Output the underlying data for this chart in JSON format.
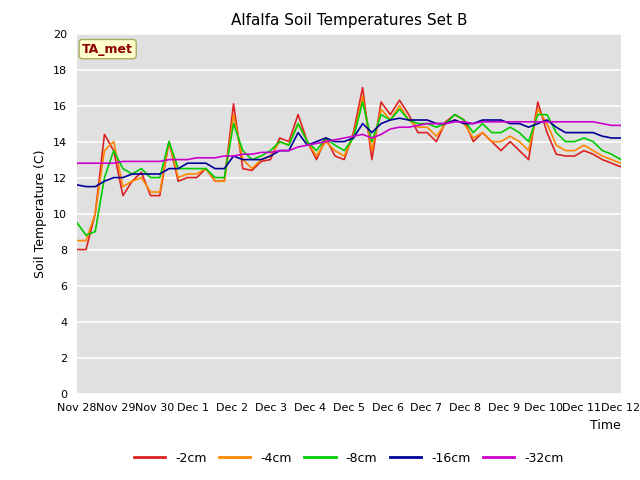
{
  "title": "Alfalfa Soil Temperatures Set B",
  "xlabel": "Time",
  "ylabel": "Soil Temperature (C)",
  "ylim": [
    0,
    20
  ],
  "yticks": [
    0,
    2,
    4,
    6,
    8,
    10,
    12,
    14,
    16,
    18,
    20
  ],
  "bg_color": "#e0e0e0",
  "fig_color": "#ffffff",
  "annotation_text": "TA_met",
  "annotation_color": "#8b0000",
  "annotation_bg": "#ffffcc",
  "series": {
    "-2cm": {
      "color": "#dd2222",
      "lw": 1.2
    },
    "-4cm": {
      "color": "#ff8800",
      "lw": 1.2
    },
    "-8cm": {
      "color": "#00cc00",
      "lw": 1.2
    },
    "-16cm": {
      "color": "#000099",
      "lw": 1.2
    },
    "-32cm": {
      "color": "#cc00cc",
      "lw": 1.2
    }
  },
  "x_tick_labels": [
    "Nov 28",
    "Nov 29",
    "Nov 30",
    "Dec 1",
    "Dec 2",
    "Dec 3",
    "Dec 4",
    "Dec 5",
    "Dec 6",
    "Dec 7",
    "Dec 8",
    "Dec 9",
    "Dec 10",
    "Dec 11",
    "Dec 12"
  ],
  "data_2cm": [
    8.0,
    8.0,
    10.0,
    14.4,
    13.5,
    11.0,
    11.8,
    12.3,
    11.0,
    11.0,
    14.0,
    11.8,
    12.0,
    12.0,
    12.5,
    11.8,
    11.8,
    16.1,
    12.5,
    12.4,
    12.9,
    13.0,
    14.2,
    14.0,
    15.5,
    14.0,
    13.0,
    14.2,
    13.2,
    13.0,
    14.5,
    17.0,
    13.0,
    16.2,
    15.5,
    16.3,
    15.5,
    14.5,
    14.5,
    14.0,
    15.1,
    15.5,
    15.2,
    14.0,
    14.5,
    14.0,
    13.5,
    14.0,
    13.5,
    13.0,
    16.2,
    14.5,
    13.3,
    13.2,
    13.2,
    13.5,
    13.3,
    13.0,
    12.8,
    12.6
  ],
  "data_4cm": [
    8.5,
    8.5,
    10.0,
    13.5,
    14.0,
    11.5,
    11.8,
    12.0,
    11.2,
    11.2,
    14.0,
    12.0,
    12.2,
    12.2,
    12.5,
    11.8,
    11.8,
    15.5,
    13.0,
    12.5,
    13.0,
    13.2,
    14.0,
    13.8,
    15.0,
    14.0,
    13.2,
    14.0,
    13.5,
    13.2,
    14.3,
    16.5,
    13.5,
    15.8,
    15.2,
    16.0,
    15.2,
    14.8,
    14.8,
    14.3,
    15.0,
    15.2,
    15.0,
    14.2,
    14.5,
    14.0,
    14.0,
    14.3,
    14.0,
    13.5,
    15.8,
    15.0,
    13.8,
    13.5,
    13.5,
    13.8,
    13.5,
    13.2,
    13.0,
    12.8
  ],
  "data_8cm": [
    9.5,
    8.8,
    9.0,
    12.0,
    13.5,
    12.5,
    12.2,
    12.5,
    12.0,
    12.0,
    14.0,
    12.5,
    12.5,
    12.5,
    12.5,
    12.0,
    12.0,
    15.0,
    13.5,
    13.0,
    13.2,
    13.5,
    14.0,
    13.8,
    15.0,
    14.0,
    13.5,
    14.2,
    13.8,
    13.5,
    14.2,
    16.2,
    14.0,
    15.5,
    15.2,
    15.8,
    15.2,
    15.0,
    15.0,
    14.8,
    15.0,
    15.5,
    15.2,
    14.5,
    15.0,
    14.5,
    14.5,
    14.8,
    14.5,
    14.0,
    15.5,
    15.5,
    14.5,
    14.0,
    14.0,
    14.2,
    14.0,
    13.5,
    13.3,
    13.0
  ],
  "data_16cm": [
    11.6,
    11.5,
    11.5,
    11.8,
    12.0,
    12.0,
    12.2,
    12.2,
    12.2,
    12.2,
    12.5,
    12.5,
    12.8,
    12.8,
    12.8,
    12.5,
    12.5,
    13.2,
    13.0,
    13.0,
    13.0,
    13.2,
    13.5,
    13.5,
    14.5,
    13.8,
    14.0,
    14.2,
    14.0,
    14.0,
    14.2,
    15.0,
    14.5,
    15.0,
    15.2,
    15.3,
    15.2,
    15.2,
    15.2,
    15.0,
    15.0,
    15.2,
    15.0,
    15.0,
    15.2,
    15.2,
    15.2,
    15.0,
    15.0,
    14.8,
    15.0,
    15.2,
    14.8,
    14.5,
    14.5,
    14.5,
    14.5,
    14.3,
    14.2,
    14.2
  ],
  "data_32cm": [
    12.8,
    12.8,
    12.8,
    12.8,
    12.8,
    12.9,
    12.9,
    12.9,
    12.9,
    12.9,
    13.0,
    13.0,
    13.0,
    13.1,
    13.1,
    13.1,
    13.2,
    13.2,
    13.3,
    13.3,
    13.4,
    13.4,
    13.5,
    13.5,
    13.7,
    13.8,
    13.9,
    14.0,
    14.1,
    14.2,
    14.3,
    14.4,
    14.2,
    14.4,
    14.7,
    14.8,
    14.8,
    14.9,
    15.0,
    15.0,
    15.0,
    15.1,
    15.1,
    15.0,
    15.1,
    15.1,
    15.1,
    15.1,
    15.1,
    15.1,
    15.1,
    15.1,
    15.1,
    15.1,
    15.1,
    15.1,
    15.1,
    15.0,
    14.9,
    14.9
  ]
}
